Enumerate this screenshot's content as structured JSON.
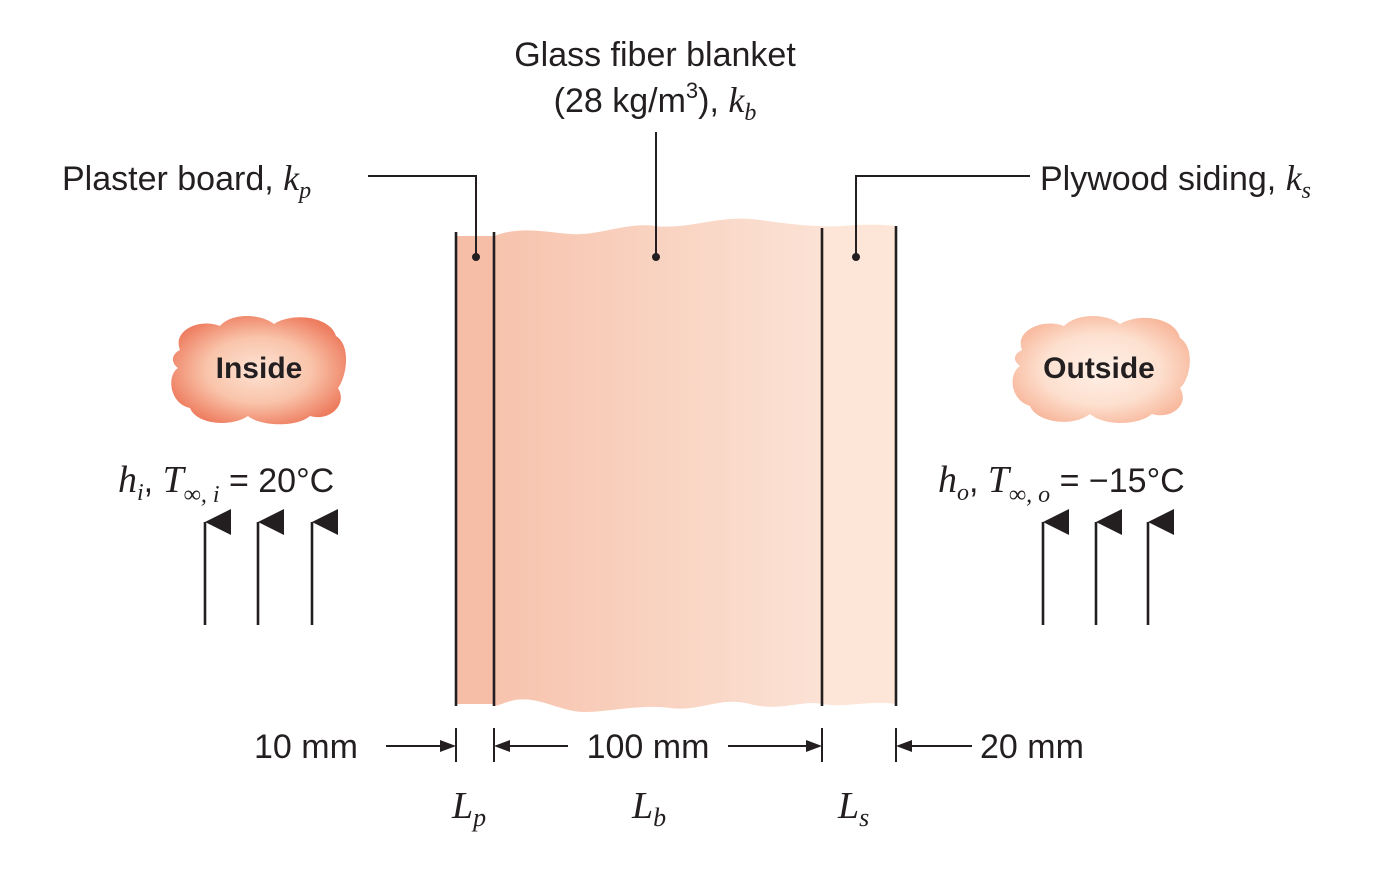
{
  "labels": {
    "blanket_line1": "Glass fiber blanket",
    "blanket_line2_text": "(28 kg/m",
    "blanket_line2_sup": "3",
    "blanket_line2_close": "), ",
    "blanket_sym": "k",
    "blanket_sub": "b",
    "plaster_text": "Plaster board, ",
    "plaster_sym": "k",
    "plaster_sub": "p",
    "plywood_text": "Plywood siding, ",
    "plywood_sym": "k",
    "plywood_sub": "s"
  },
  "inside": {
    "cloud_label": "Inside",
    "h_sym": "h",
    "h_sub": "i",
    "T_sym": "T",
    "T_sub": "∞, i",
    "value": " = 20°C"
  },
  "outside": {
    "cloud_label": "Outside",
    "h_sym": "h",
    "h_sub": "o",
    "T_sym": "T",
    "T_sub": "∞, o",
    "value": " = −15°C"
  },
  "dimensions": {
    "plaster": "10 mm",
    "blanket": "100 mm",
    "siding": "20 mm"
  },
  "layer_symbols": {
    "Lp_sym": "L",
    "Lp_sub": "p",
    "Lb_sym": "L",
    "Lb_sub": "b",
    "Ls_sym": "L",
    "Ls_sub": "s"
  },
  "colors": {
    "plaster": "#f6c0a8",
    "blanket_dark": "#f8c6b0",
    "blanket_light": "#fbe0d2",
    "siding": "#fde6da",
    "cloud_inside_edge": "#ef7f62",
    "cloud_inside_core": "#fbd9c6",
    "cloud_outside_edge": "#f7b79c",
    "cloud_outside_core": "#fde4d6"
  }
}
